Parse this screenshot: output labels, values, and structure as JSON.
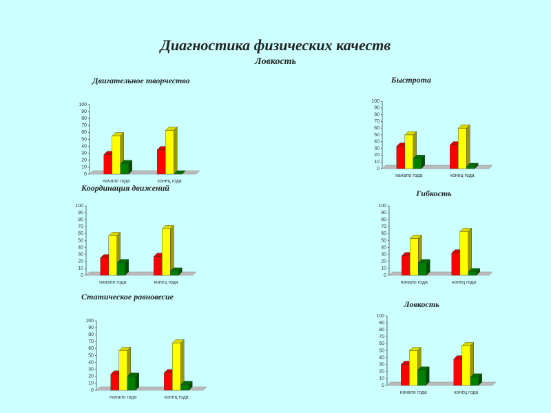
{
  "header": {
    "title": "Диагностика физических качеств",
    "subtitle": "Ловкость"
  },
  "chart_data": [
    {
      "type": "bar",
      "title": "Двигательное творчество",
      "categories": [
        "начало года",
        "конец года"
      ],
      "series": [
        {
          "color": "#ff0000",
          "values": [
            28,
            35
          ]
        },
        {
          "color": "#ffff00",
          "values": [
            55,
            63
          ]
        },
        {
          "color": "#008000",
          "values": [
            15,
            0
          ]
        }
      ],
      "ylim": [
        0,
        100
      ],
      "yticks": [
        0,
        10,
        20,
        30,
        40,
        50,
        60,
        70,
        80,
        90,
        100
      ]
    },
    {
      "type": "bar",
      "title": "Быстрота",
      "categories": [
        "начало года",
        "конец года"
      ],
      "series": [
        {
          "color": "#ff0000",
          "values": [
            33,
            35
          ]
        },
        {
          "color": "#ffff00",
          "values": [
            50,
            60
          ]
        },
        {
          "color": "#008000",
          "values": [
            15,
            3
          ]
        }
      ],
      "ylim": [
        0,
        100
      ],
      "yticks": [
        0,
        10,
        20,
        30,
        40,
        50,
        60,
        70,
        80,
        90,
        100
      ]
    },
    {
      "type": "bar",
      "title": "Координация движений",
      "categories": [
        "начало года",
        "конец года"
      ],
      "series": [
        {
          "color": "#ff0000",
          "values": [
            25,
            27
          ]
        },
        {
          "color": "#ffff00",
          "values": [
            57,
            67
          ]
        },
        {
          "color": "#008000",
          "values": [
            18,
            6
          ]
        }
      ],
      "ylim": [
        0,
        100
      ],
      "yticks": [
        0,
        10,
        20,
        30,
        40,
        50,
        60,
        70,
        80,
        90,
        100
      ]
    },
    {
      "type": "bar",
      "title": "Гибкость",
      "categories": [
        "начало года",
        "конец года"
      ],
      "series": [
        {
          "color": "#ff0000",
          "values": [
            28,
            32
          ]
        },
        {
          "color": "#ffff00",
          "values": [
            53,
            63
          ]
        },
        {
          "color": "#008000",
          "values": [
            18,
            5
          ]
        }
      ],
      "ylim": [
        0,
        100
      ],
      "yticks": [
        0,
        10,
        20,
        30,
        40,
        50,
        60,
        70,
        80,
        90,
        100
      ]
    },
    {
      "type": "bar",
      "title": "Статическое равновесие",
      "categories": [
        "начало года",
        "конец года"
      ],
      "series": [
        {
          "color": "#ff0000",
          "values": [
            23,
            25
          ]
        },
        {
          "color": "#ffff00",
          "values": [
            57,
            68
          ]
        },
        {
          "color": "#008000",
          "values": [
            20,
            8
          ]
        }
      ],
      "ylim": [
        0,
        100
      ],
      "yticks": [
        0,
        10,
        20,
        30,
        40,
        50,
        60,
        70,
        80,
        90,
        100
      ]
    },
    {
      "type": "bar",
      "title": "Ловкость",
      "categories": [
        "начало года",
        "конец года"
      ],
      "series": [
        {
          "color": "#ff0000",
          "values": [
            30,
            38
          ]
        },
        {
          "color": "#ffff00",
          "values": [
            50,
            57
          ]
        },
        {
          "color": "#008000",
          "values": [
            22,
            12
          ]
        }
      ],
      "ylim": [
        0,
        100
      ],
      "yticks": [
        0,
        10,
        20,
        30,
        40,
        50,
        60,
        70,
        80,
        90,
        100
      ]
    }
  ]
}
